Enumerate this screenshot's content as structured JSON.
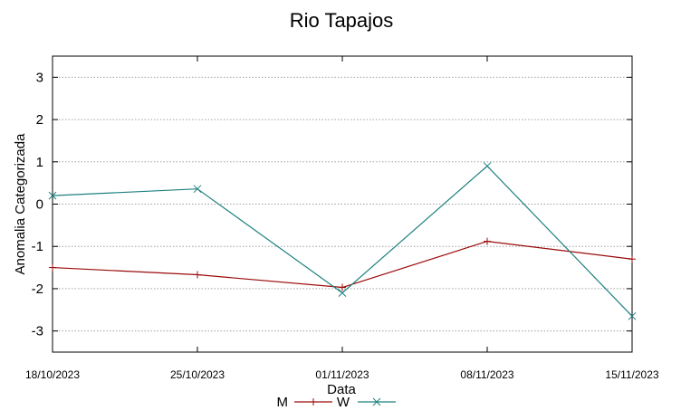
{
  "chart_data": {
    "type": "line",
    "title": "Rio Tapajos",
    "xlabel": "Data",
    "ylabel": "Anomalia Categorizada",
    "x": [
      "18/10/2023",
      "25/10/2023",
      "01/11/2023",
      "08/11/2023",
      "15/11/2023"
    ],
    "ylim": [
      -3.5,
      3.5
    ],
    "yticks": [
      3,
      2,
      1,
      0,
      -1,
      -2,
      -3
    ],
    "grid": true,
    "legend_position": "bottom",
    "series": [
      {
        "name": "M",
        "color": "#9b0a0a",
        "marker": "plus",
        "values": [
          -1.5,
          -1.67,
          -1.97,
          -0.88,
          -1.3
        ]
      },
      {
        "name": "W",
        "color": "#1f8080",
        "marker": "cross",
        "values": [
          0.2,
          0.36,
          -2.1,
          0.9,
          -2.65
        ]
      }
    ]
  }
}
